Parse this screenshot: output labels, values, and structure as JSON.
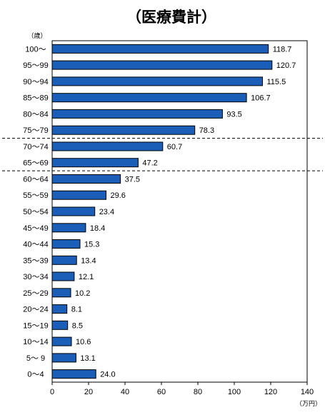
{
  "chart_data": {
    "type": "bar",
    "orientation": "horizontal",
    "title": "（医療費計）",
    "ylabel": "（歳）",
    "xlabel": "（万円）",
    "categories": [
      "100〜",
      "95〜99",
      "90〜94",
      "85〜89",
      "80〜84",
      "75〜79",
      "70〜74",
      "65〜69",
      "60〜64",
      "55〜59",
      "50〜54",
      "45〜49",
      "40〜44",
      "35〜39",
      "30〜34",
      "25〜29",
      "20〜24",
      "15〜19",
      "10〜14",
      "5〜 9",
      "0〜4"
    ],
    "values": [
      118.7,
      120.7,
      115.5,
      106.7,
      93.5,
      78.3,
      60.7,
      47.2,
      37.5,
      29.6,
      23.4,
      18.4,
      15.3,
      13.4,
      12.1,
      10.2,
      8.1,
      8.5,
      10.6,
      13.1,
      24.0
    ],
    "value_labels": [
      "118.7",
      "120.7",
      "115.5",
      "106.7",
      "93.5",
      "78.3",
      "60.7",
      "47.2",
      "37.5",
      "29.6",
      "23.4",
      "18.4",
      "15.3",
      "13.4",
      "12.1",
      "10.2",
      "8.1",
      "8.5",
      "10.6",
      "13.1",
      "24.0"
    ],
    "xlim": [
      0,
      140
    ],
    "xticks": [
      "0",
      "20",
      "40",
      "60",
      "80",
      "100",
      "120",
      "140"
    ],
    "bar_color": "#1a5eb8",
    "separators_after_category": [
      "75〜79",
      "65〜69"
    ],
    "grid": false,
    "legend": "none"
  }
}
